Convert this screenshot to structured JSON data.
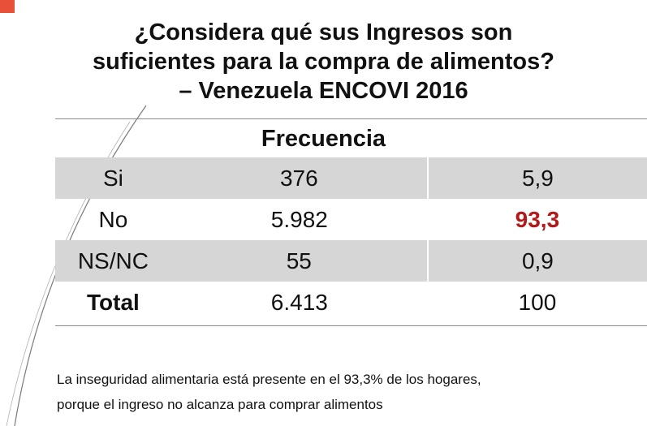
{
  "title": {
    "line1": "¿Considera qué sus Ingresos son",
    "line2": "suficientes para la compra de alimentos?",
    "line3": "– Venezuela ENCOVI 2016"
  },
  "header": "Frecuencia",
  "rows": [
    {
      "label": "Si",
      "count": "376",
      "percent": "5,9"
    },
    {
      "label": "No",
      "count": "5.982",
      "percent": "93,3"
    },
    {
      "label": "NS/NC",
      "count": "55",
      "percent": "0,9"
    },
    {
      "label": "Total",
      "count": "6.413",
      "percent": "100"
    }
  ],
  "footnote": {
    "line1": "La inseguridad alimentaria está presente en el 93,3% de los hogares,",
    "line2": "porque el ingreso no alcanza para comprar  alimentos"
  },
  "colors": {
    "highlight": "#b21a1a",
    "row_shade": "#d6d6d6",
    "corner_accent": "#e8503a"
  }
}
